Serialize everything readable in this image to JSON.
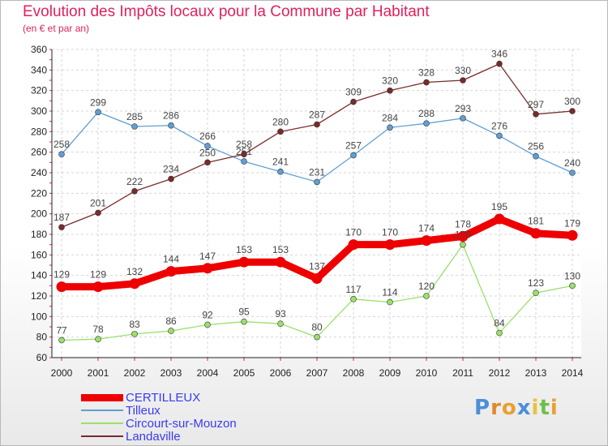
{
  "header": {
    "title": "Evolution des Impôts locaux pour la Commune par Habitant",
    "subtitle": "(en € et par an)"
  },
  "brand": {
    "logo_text": "Proxiti"
  },
  "chart_data": {
    "type": "line",
    "title": "Evolution des Impôts locaux pour la Commune par Habitant",
    "subtitle": "(en € et par an)",
    "xlabel": "",
    "ylabel": "",
    "x": [
      "2000",
      "2001",
      "2002",
      "2003",
      "2004",
      "2005",
      "2006",
      "2007",
      "2008",
      "2009",
      "2010",
      "2011",
      "2012",
      "2013",
      "2014"
    ],
    "ylim": [
      60,
      360
    ],
    "yticks": [
      60,
      80,
      100,
      120,
      140,
      160,
      180,
      200,
      220,
      240,
      260,
      280,
      300,
      320,
      340,
      360
    ],
    "grid": true,
    "legend_position": "bottom-left",
    "series": [
      {
        "name": "CERTILLEUX",
        "color": "#ee0000",
        "emphasis": true,
        "values": [
          129,
          129,
          132,
          144,
          147,
          153,
          153,
          137,
          170,
          170,
          174,
          178,
          195,
          181,
          179
        ]
      },
      {
        "name": "Tilleux",
        "color": "#5f9fd4",
        "emphasis": false,
        "values": [
          258,
          299,
          285,
          286,
          266,
          251,
          241,
          231,
          257,
          284,
          288,
          293,
          276,
          256,
          240
        ]
      },
      {
        "name": "Circourt-sur-Mouzon",
        "color": "#9be06b",
        "emphasis": false,
        "values": [
          77,
          78,
          83,
          86,
          92,
          95,
          93,
          80,
          117,
          114,
          120,
          170,
          84,
          123,
          130
        ]
      },
      {
        "name": "Landaville",
        "color": "#7a2a2a",
        "emphasis": false,
        "values": [
          187,
          201,
          222,
          234,
          250,
          258,
          280,
          287,
          309,
          320,
          328,
          330,
          346,
          297,
          300
        ]
      }
    ]
  }
}
